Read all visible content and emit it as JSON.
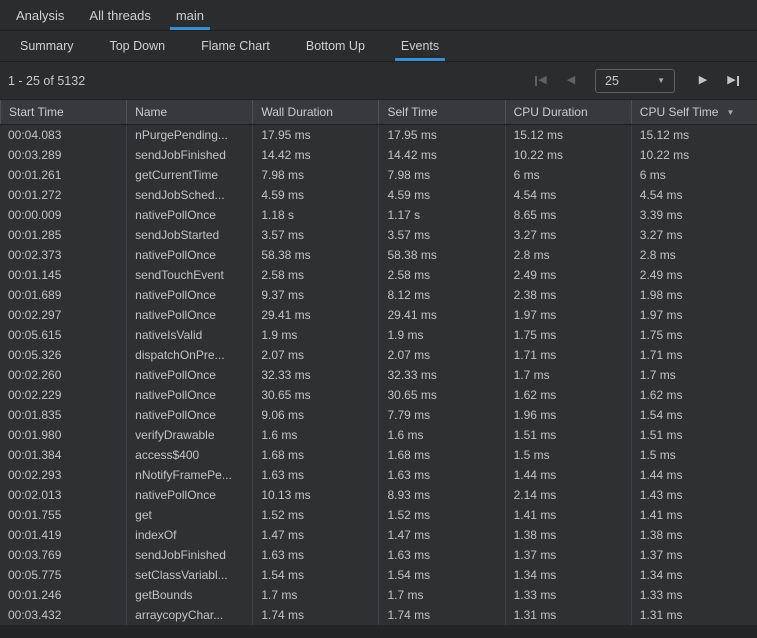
{
  "thread_tabs": [
    {
      "label": "Analysis"
    },
    {
      "label": "All threads"
    },
    {
      "label": "main",
      "active": true
    }
  ],
  "view_tabs": [
    {
      "label": "Summary"
    },
    {
      "label": "Top Down"
    },
    {
      "label": "Flame Chart"
    },
    {
      "label": "Bottom Up"
    },
    {
      "label": "Events",
      "active": true
    }
  ],
  "pagination": {
    "range_label": "1 - 25 of 5132",
    "page_size": "25"
  },
  "icons": {
    "prev_triangle": "◀",
    "next_triangle": "▶",
    "down_triangle": "▼"
  },
  "accent_color": "#3a8fd4",
  "table": {
    "columns": [
      {
        "label": "Start Time"
      },
      {
        "label": "Name"
      },
      {
        "label": "Wall Duration"
      },
      {
        "label": "Self Time"
      },
      {
        "label": "CPU Duration"
      },
      {
        "label": "CPU Self Time",
        "sorted": true,
        "sort": "desc"
      }
    ],
    "rows": [
      [
        "00:04.083",
        "nPurgePending...",
        "17.95 ms",
        "17.95 ms",
        "15.12 ms",
        "15.12 ms"
      ],
      [
        "00:03.289",
        "sendJobFinished",
        "14.42 ms",
        "14.42 ms",
        "10.22 ms",
        "10.22 ms"
      ],
      [
        "00:01.261",
        "getCurrentTime",
        "7.98 ms",
        "7.98 ms",
        "6 ms",
        "6 ms"
      ],
      [
        "00:01.272",
        "sendJobSched...",
        "4.59 ms",
        "4.59 ms",
        "4.54 ms",
        "4.54 ms"
      ],
      [
        "00:00.009",
        "nativePollOnce",
        "1.18 s",
        "1.17 s",
        "8.65 ms",
        "3.39 ms"
      ],
      [
        "00:01.285",
        "sendJobStarted",
        "3.57 ms",
        "3.57 ms",
        "3.27 ms",
        "3.27 ms"
      ],
      [
        "00:02.373",
        "nativePollOnce",
        "58.38 ms",
        "58.38 ms",
        "2.8 ms",
        "2.8 ms"
      ],
      [
        "00:01.145",
        "sendTouchEvent",
        "2.58 ms",
        "2.58 ms",
        "2.49 ms",
        "2.49 ms"
      ],
      [
        "00:01.689",
        "nativePollOnce",
        "9.37 ms",
        "8.12 ms",
        "2.38 ms",
        "1.98 ms"
      ],
      [
        "00:02.297",
        "nativePollOnce",
        "29.41 ms",
        "29.41 ms",
        "1.97 ms",
        "1.97 ms"
      ],
      [
        "00:05.615",
        "nativeIsValid",
        "1.9 ms",
        "1.9 ms",
        "1.75 ms",
        "1.75 ms"
      ],
      [
        "00:05.326",
        "dispatchOnPre...",
        "2.07 ms",
        "2.07 ms",
        "1.71 ms",
        "1.71 ms"
      ],
      [
        "00:02.260",
        "nativePollOnce",
        "32.33 ms",
        "32.33 ms",
        "1.7 ms",
        "1.7 ms"
      ],
      [
        "00:02.229",
        "nativePollOnce",
        "30.65 ms",
        "30.65 ms",
        "1.62 ms",
        "1.62 ms"
      ],
      [
        "00:01.835",
        "nativePollOnce",
        "9.06 ms",
        "7.79 ms",
        "1.96 ms",
        "1.54 ms"
      ],
      [
        "00:01.980",
        "verifyDrawable",
        "1.6 ms",
        "1.6 ms",
        "1.51 ms",
        "1.51 ms"
      ],
      [
        "00:01.384",
        "access$400",
        "1.68 ms",
        "1.68 ms",
        "1.5 ms",
        "1.5 ms"
      ],
      [
        "00:02.293",
        "nNotifyFramePe...",
        "1.63 ms",
        "1.63 ms",
        "1.44 ms",
        "1.44 ms"
      ],
      [
        "00:02.013",
        "nativePollOnce",
        "10.13 ms",
        "8.93 ms",
        "2.14 ms",
        "1.43 ms"
      ],
      [
        "00:01.755",
        "get",
        "1.52 ms",
        "1.52 ms",
        "1.41 ms",
        "1.41 ms"
      ],
      [
        "00:01.419",
        "indexOf",
        "1.47 ms",
        "1.47 ms",
        "1.38 ms",
        "1.38 ms"
      ],
      [
        "00:03.769",
        "sendJobFinished",
        "1.63 ms",
        "1.63 ms",
        "1.37 ms",
        "1.37 ms"
      ],
      [
        "00:05.775",
        "setClassVariabl...",
        "1.54 ms",
        "1.54 ms",
        "1.34 ms",
        "1.34 ms"
      ],
      [
        "00:01.246",
        "getBounds",
        "1.7 ms",
        "1.7 ms",
        "1.33 ms",
        "1.33 ms"
      ],
      [
        "00:03.432",
        "arraycopyChar...",
        "1.74 ms",
        "1.74 ms",
        "1.31 ms",
        "1.31 ms"
      ]
    ]
  }
}
